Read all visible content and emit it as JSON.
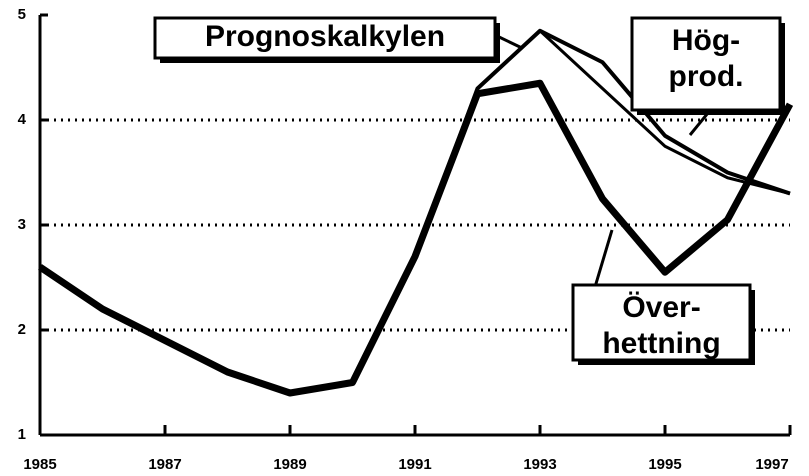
{
  "chart_data": {
    "type": "line",
    "x": [
      1985,
      1986,
      1987,
      1988,
      1989,
      1990,
      1991,
      1992,
      1993,
      1994,
      1995,
      1996,
      1997
    ],
    "series": [
      {
        "name": "Överhettning",
        "color": "#000000",
        "values": [
          2.6,
          2.2,
          1.9,
          1.6,
          1.4,
          1.5,
          2.7,
          4.25,
          4.35,
          3.25,
          2.55,
          3.05,
          4.15
        ]
      },
      {
        "name": "Hög-prod.",
        "color": "#000000",
        "values": [
          2.6,
          2.2,
          1.9,
          1.6,
          1.4,
          1.5,
          2.7,
          4.3,
          4.85,
          4.55,
          3.85,
          3.5,
          3.3
        ]
      },
      {
        "name": "Prognoskalkylen",
        "color": "#000000",
        "values": [
          2.6,
          2.2,
          1.9,
          1.6,
          1.4,
          1.5,
          2.7,
          4.3,
          4.85,
          4.3,
          3.75,
          3.45,
          3.3
        ]
      }
    ],
    "xlim": [
      1985,
      1997
    ],
    "xticks": [
      1985,
      1987,
      1989,
      1991,
      1993,
      1995,
      1997
    ],
    "ylim": [
      1,
      5
    ],
    "yticks": [
      1,
      2,
      3,
      4,
      5
    ],
    "grid": true,
    "annotations": [
      {
        "lines": [
          "Prognoskalkylen"
        ]
      },
      {
        "lines": [
          "Hög-",
          "prod."
        ]
      },
      {
        "lines": [
          "Över-",
          "hettning"
        ]
      }
    ]
  }
}
